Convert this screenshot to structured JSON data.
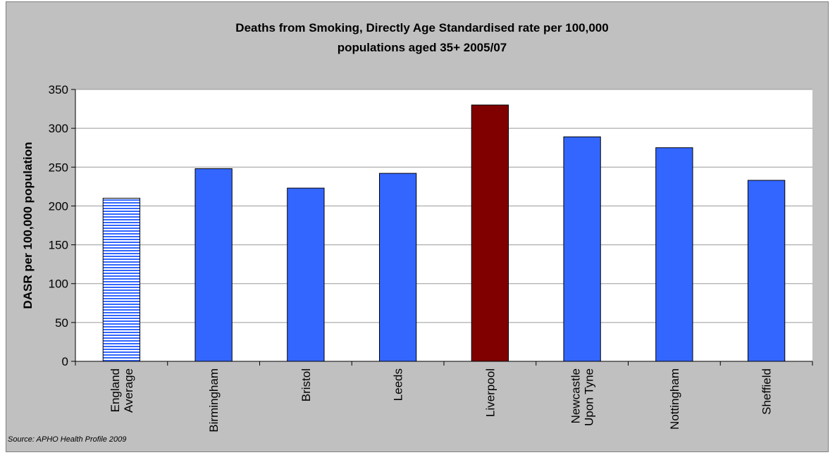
{
  "chart_data": {
    "type": "bar",
    "title_lines": [
      "Deaths from Smoking, Directly Age Standardised rate per 100,000",
      "populations aged 35+ 2005/07"
    ],
    "ylabel": "DASR per 100,000 population",
    "xlabel": "",
    "categories": [
      [
        "England",
        "Average"
      ],
      [
        "Birmingham"
      ],
      [
        "Bristol"
      ],
      [
        "Leeds"
      ],
      [
        "Liverpool"
      ],
      [
        "Newcastle",
        "Upon Tyne"
      ],
      [
        "Nottingham"
      ],
      [
        "Sheffield"
      ]
    ],
    "values": [
      210,
      248,
      223,
      242,
      330,
      289,
      275,
      233
    ],
    "bar_styles": [
      "hatched",
      "solid",
      "solid",
      "solid",
      "highlight",
      "solid",
      "solid",
      "solid"
    ],
    "ylim": [
      0,
      350
    ],
    "yticks": [
      0,
      50,
      100,
      150,
      200,
      250,
      300,
      350
    ],
    "grid": true,
    "legend": "none",
    "source": "Source: APHO Health Profile 2009",
    "colors": {
      "bar": "#3366ff",
      "highlight": "#800000",
      "hatched_fill": "#ffffff",
      "hatched_line": "#3366ff",
      "plot_bg": "#ffffff",
      "frame_bg": "#c0c0c0"
    }
  }
}
